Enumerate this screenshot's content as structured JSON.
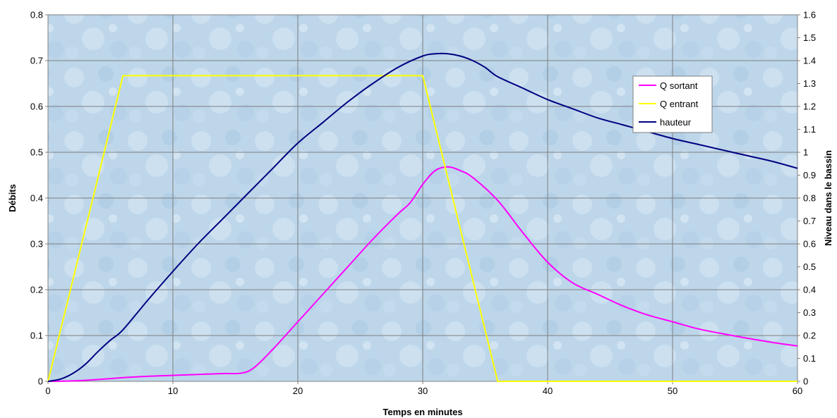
{
  "chart_data": {
    "type": "line",
    "xlabel": "Temps en minutes",
    "ylabel_left": "Débits",
    "ylabel_right": "Niveau dans le bassin",
    "xlim": [
      0,
      60
    ],
    "ylim_left": [
      0,
      0.8
    ],
    "ylim_right": [
      0,
      1.6
    ],
    "x_ticks": [
      "0",
      "10",
      "20",
      "30",
      "40",
      "50",
      "60"
    ],
    "y_left_ticks": [
      "0",
      "0.1",
      "0.2",
      "0.3",
      "0.4",
      "0.5",
      "0.6",
      "0.7",
      "0.8"
    ],
    "y_right_ticks": [
      "0",
      "0.1",
      "0.2",
      "0.3",
      "0.4",
      "0.5",
      "0.6",
      "0.7",
      "0.8",
      "0.9",
      "1",
      "1.1",
      "1.2",
      "1.3",
      "1.4",
      "1.5",
      "1.6"
    ],
    "grid": true,
    "legend_position": "top-right",
    "series": [
      {
        "name": "Q sortant",
        "axis": "left",
        "color": "#ff00ff",
        "x": [
          0,
          2,
          4,
          6,
          8,
          10,
          12,
          14,
          15.5,
          16.5,
          18,
          20,
          22,
          24,
          26,
          28,
          29,
          30,
          31,
          32,
          33,
          34,
          36,
          38,
          40,
          42,
          44,
          46,
          48,
          50,
          52,
          54,
          56,
          58,
          60
        ],
        "y": [
          0,
          0.001,
          0.004,
          0.008,
          0.011,
          0.013,
          0.015,
          0.017,
          0.018,
          0.03,
          0.07,
          0.13,
          0.19,
          0.25,
          0.31,
          0.365,
          0.39,
          0.43,
          0.46,
          0.468,
          0.46,
          0.445,
          0.395,
          0.325,
          0.26,
          0.215,
          0.19,
          0.165,
          0.145,
          0.13,
          0.115,
          0.104,
          0.094,
          0.085,
          0.077
        ]
      },
      {
        "name": "Q entrant",
        "axis": "left",
        "color": "#ffff00",
        "x": [
          0,
          6,
          30,
          36,
          60
        ],
        "y": [
          0,
          0.667,
          0.667,
          0,
          0
        ]
      },
      {
        "name": "hauteur",
        "axis": "right",
        "color": "#000080",
        "x": [
          0,
          1,
          2,
          3,
          4,
          5,
          6,
          8,
          10,
          12,
          14,
          16,
          18,
          20,
          22,
          24,
          26,
          28,
          30,
          31,
          32,
          33,
          34,
          35,
          36,
          38,
          40,
          42,
          44,
          46,
          48,
          50,
          52,
          54,
          56,
          58,
          60
        ],
        "y": [
          0,
          0.01,
          0.035,
          0.075,
          0.13,
          0.18,
          0.225,
          0.355,
          0.48,
          0.6,
          0.71,
          0.82,
          0.93,
          1.04,
          1.13,
          1.22,
          1.3,
          1.37,
          1.42,
          1.43,
          1.43,
          1.42,
          1.4,
          1.37,
          1.33,
          1.28,
          1.23,
          1.19,
          1.15,
          1.12,
          1.09,
          1.06,
          1.035,
          1.01,
          0.985,
          0.96,
          0.93
        ]
      }
    ]
  }
}
